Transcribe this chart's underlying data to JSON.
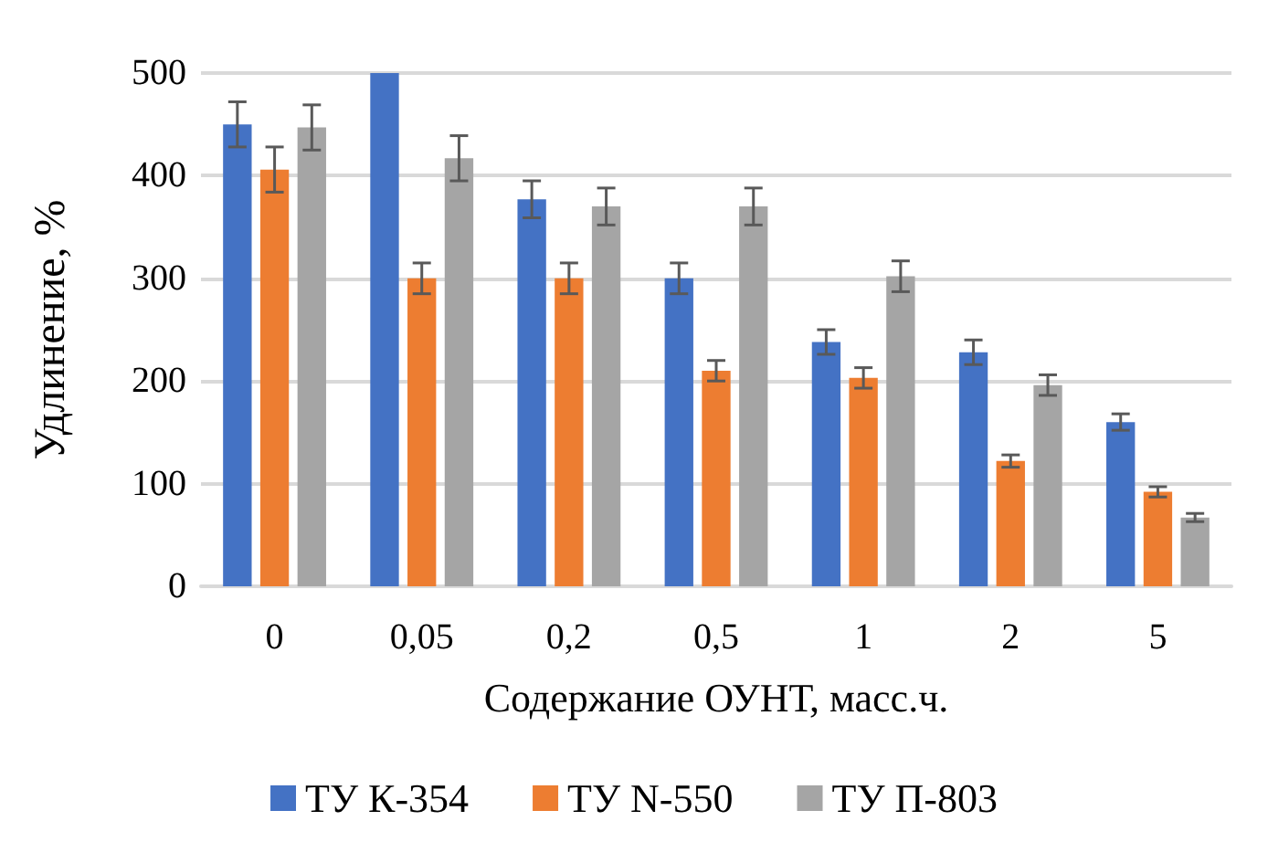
{
  "chart_data": {
    "type": "bar",
    "xlabel": "Содержание ОУНТ, масс.ч.",
    "ylabel": "Удлинение, %",
    "categories": [
      "0",
      "0,05",
      "0,2",
      "0,5",
      "1",
      "2",
      "5"
    ],
    "series": [
      {
        "name": "ТУ К-354",
        "color": "#4472c4",
        "values": [
          450,
          500,
          377,
          300,
          238,
          228,
          160
        ],
        "errors": [
          22,
          null,
          18,
          15,
          12,
          12,
          8
        ]
      },
      {
        "name": "ТУ N-550",
        "color": "#ed7d31",
        "values": [
          406,
          300,
          300,
          210,
          203,
          122,
          92
        ],
        "errors": [
          22,
          15,
          15,
          10,
          10,
          6,
          5
        ]
      },
      {
        "name": "ТУ П-803",
        "color": "#a5a5a5",
        "values": [
          447,
          417,
          370,
          370,
          302,
          196,
          67
        ],
        "errors": [
          22,
          22,
          18,
          18,
          15,
          10,
          4
        ]
      }
    ],
    "ylim": [
      0,
      500
    ],
    "yticks": [
      0,
      100,
      200,
      300,
      400,
      500
    ],
    "grid": "y",
    "legend": "bottom"
  }
}
